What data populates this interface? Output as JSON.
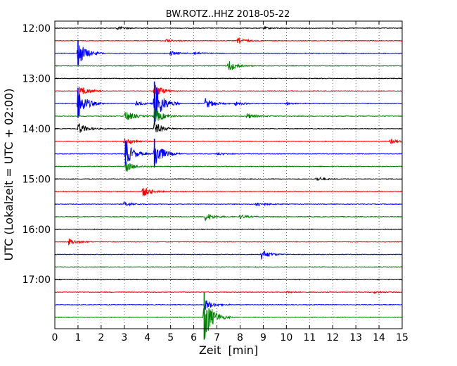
{
  "chart_data": {
    "type": "line",
    "title": "BW.ROTZ..HHZ 2018-05-22",
    "xlabel": "Zeit  [min]",
    "ylabel": "UTC (Lokalzeit = UTC + 02:00)",
    "xlim": [
      0,
      15
    ],
    "x_ticks": [
      0,
      1,
      2,
      3,
      4,
      5,
      6,
      7,
      8,
      9,
      10,
      11,
      12,
      13,
      14,
      15
    ],
    "y_tick_labels": [
      "12:00",
      "13:00",
      "14:00",
      "15:00",
      "16:00",
      "17:00"
    ],
    "grid": "vertical-dotted",
    "trace_interval_min": 15,
    "trace_colors": [
      "#000000",
      "#ff0000",
      "#0000ff",
      "#008000"
    ],
    "traces": [
      {
        "start": "12:00",
        "color": "#000000",
        "events": [
          {
            "t": 2.7,
            "amp": 0.25
          },
          {
            "t": 9.0,
            "amp": 0.15
          }
        ]
      },
      {
        "start": "12:15",
        "color": "#ff0000",
        "events": [
          {
            "t": 4.8,
            "amp": 0.25
          },
          {
            "t": 7.9,
            "amp": 0.4
          }
        ]
      },
      {
        "start": "12:30",
        "color": "#0000ff",
        "events": [
          {
            "t": 1.0,
            "amp": 1.9
          },
          {
            "t": 5.0,
            "amp": 0.3
          },
          {
            "t": 6.0,
            "amp": 0.2
          }
        ]
      },
      {
        "start": "12:45",
        "color": "#008000",
        "events": [
          {
            "t": 7.5,
            "amp": 0.9
          }
        ]
      },
      {
        "start": "13:00",
        "color": "#000000",
        "events": []
      },
      {
        "start": "13:15",
        "color": "#ff0000",
        "events": [
          {
            "t": 1.0,
            "amp": 1.0
          },
          {
            "t": 4.3,
            "amp": 1.1
          }
        ]
      },
      {
        "start": "13:30",
        "color": "#0000ff",
        "events": [
          {
            "t": 1.0,
            "amp": 2.3
          },
          {
            "t": 3.5,
            "amp": 0.35
          },
          {
            "t": 4.3,
            "amp": 3.2
          },
          {
            "t": 6.5,
            "amp": 0.8
          },
          {
            "t": 7.8,
            "amp": 0.3
          },
          {
            "t": 10.0,
            "amp": 0.15
          }
        ]
      },
      {
        "start": "13:45",
        "color": "#008000",
        "events": [
          {
            "t": 3.05,
            "amp": 0.9
          },
          {
            "t": 4.3,
            "amp": 1.2
          },
          {
            "t": 8.3,
            "amp": 0.4
          }
        ]
      },
      {
        "start": "14:00",
        "color": "#000000",
        "events": [
          {
            "t": 1.0,
            "amp": 0.9
          },
          {
            "t": 4.3,
            "amp": 1.0
          }
        ]
      },
      {
        "start": "14:15",
        "color": "#ff0000",
        "events": [
          {
            "t": 3.0,
            "amp": 0.7
          },
          {
            "t": 14.5,
            "amp": 0.35
          }
        ]
      },
      {
        "start": "14:30",
        "color": "#0000ff",
        "events": [
          {
            "t": 3.05,
            "amp": 1.9
          },
          {
            "t": 4.3,
            "amp": 2.2
          },
          {
            "t": 7.0,
            "amp": 0.2
          }
        ]
      },
      {
        "start": "14:45",
        "color": "#008000",
        "events": [
          {
            "t": 3.05,
            "amp": 0.8
          }
        ]
      },
      {
        "start": "15:00",
        "color": "#000000",
        "events": [
          {
            "t": 11.3,
            "amp": 0.3
          }
        ]
      },
      {
        "start": "15:15",
        "color": "#ff0000",
        "events": [
          {
            "t": 3.8,
            "amp": 0.8
          }
        ]
      },
      {
        "start": "15:30",
        "color": "#0000ff",
        "events": [
          {
            "t": 3.0,
            "amp": 0.35
          },
          {
            "t": 8.7,
            "amp": 0.4
          }
        ]
      },
      {
        "start": "15:45",
        "color": "#008000",
        "events": [
          {
            "t": 6.5,
            "amp": 0.6
          },
          {
            "t": 8.0,
            "amp": 0.3
          }
        ]
      },
      {
        "start": "16:00",
        "color": "#000000",
        "events": []
      },
      {
        "start": "16:15",
        "color": "#ff0000",
        "events": [
          {
            "t": 0.6,
            "amp": 0.5
          }
        ]
      },
      {
        "start": "16:30",
        "color": "#0000ff",
        "events": [
          {
            "t": 8.9,
            "amp": 0.8
          }
        ]
      },
      {
        "start": "16:45",
        "color": "#008000",
        "events": []
      },
      {
        "start": "17:00",
        "color": "#000000",
        "events": []
      },
      {
        "start": "17:15",
        "color": "#ff0000",
        "events": [
          {
            "t": 10.0,
            "amp": 0.15
          },
          {
            "t": 13.8,
            "amp": 0.15
          }
        ]
      },
      {
        "start": "17:30",
        "color": "#0000ff",
        "events": [
          {
            "t": 6.5,
            "amp": 0.8
          }
        ]
      },
      {
        "start": "17:45",
        "color": "#008000",
        "events": [
          {
            "t": 6.45,
            "amp": 3.6
          }
        ]
      }
    ]
  }
}
